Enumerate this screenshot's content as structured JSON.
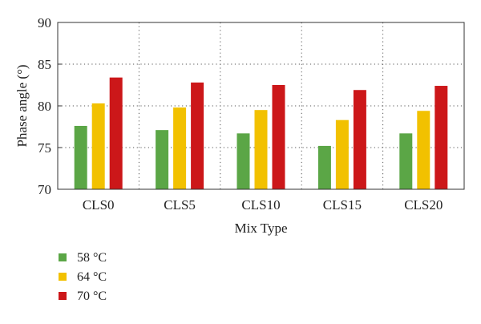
{
  "chart_data": {
    "type": "bar",
    "title": "",
    "xlabel": "Mix Type",
    "ylabel": "Phase angle (°)",
    "ylim": [
      70,
      90
    ],
    "yticks": [
      70,
      75,
      80,
      85,
      90
    ],
    "grid": true,
    "legend_position": "bottom-left",
    "categories": [
      "CLS0",
      "CLS5",
      "CLS10",
      "CLS15",
      "CLS20"
    ],
    "series": [
      {
        "name": "58 °C",
        "color": "#5ba646",
        "values": [
          77.6,
          77.1,
          76.7,
          75.2,
          76.7
        ]
      },
      {
        "name": "64 °C",
        "color": "#f2c100",
        "values": [
          80.3,
          79.8,
          79.5,
          78.3,
          79.4
        ]
      },
      {
        "name": "70 °C",
        "color": "#cc1719",
        "values": [
          83.4,
          82.8,
          82.5,
          81.9,
          82.4
        ]
      }
    ]
  }
}
